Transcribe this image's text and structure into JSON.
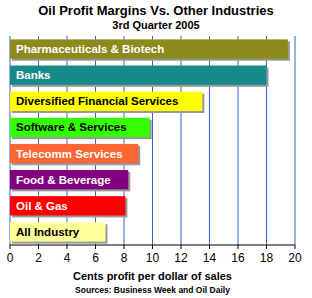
{
  "chart_data": {
    "type": "bar",
    "orientation": "horizontal",
    "title": "Oil Profit Margins Vs. Other Industries",
    "subtitle": "3rd Quarter 2005",
    "xlabel": "Cents profit per dollar of sales",
    "annotations": [
      "Sources: Business Week and Oil Daily"
    ],
    "categories": [
      "Pharmaceuticals & Biotech",
      "Banks",
      "Diversified Financial Services",
      "Software & Services",
      "Telecomm Services",
      "Food & Beverage",
      "Oil & Gas",
      "All Industry"
    ],
    "values": [
      19.5,
      18,
      13.5,
      9.8,
      9.0,
      8.3,
      8.1,
      6.7
    ],
    "colors": [
      "#8c8a1c",
      "#168a8a",
      "#ffff00",
      "#33ff00",
      "#ff6633",
      "#800080",
      "#ff0000",
      "#ffff99"
    ],
    "xlim": [
      0,
      20
    ],
    "xticks": [
      0,
      2,
      4,
      6,
      8,
      10,
      12,
      14,
      16,
      18,
      20
    ],
    "grid": true
  }
}
